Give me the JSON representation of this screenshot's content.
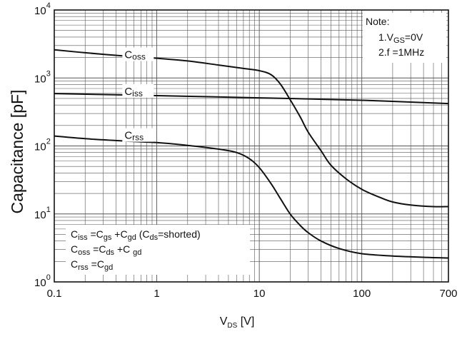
{
  "chart_data": {
    "type": "line",
    "x_scale": "log",
    "y_scale": "log",
    "xlim": [
      0.1,
      700
    ],
    "ylim": [
      1,
      10000
    ],
    "grid": true,
    "xlabel": {
      "main": "V",
      "sub": "DS",
      "unit": " [V]"
    },
    "ylabel": "Capacitance  [pF]",
    "x_ticks": [
      {
        "value": 0.1,
        "label": "0.1"
      },
      {
        "value": 1,
        "label": "1"
      },
      {
        "value": 10,
        "label": "10"
      },
      {
        "value": 100,
        "label": "100"
      },
      {
        "value": 700,
        "label": "700"
      }
    ],
    "y_ticks": [
      {
        "value": 1,
        "base": "10",
        "exp": "0"
      },
      {
        "value": 10,
        "base": "10",
        "exp": "1"
      },
      {
        "value": 100,
        "base": "10",
        "exp": "2"
      },
      {
        "value": 1000,
        "base": "10",
        "exp": "3"
      },
      {
        "value": 10000,
        "base": "10",
        "exp": "4"
      }
    ],
    "series": [
      {
        "name": "Coss",
        "label_main": "C",
        "label_sub": "oss",
        "label_at": [
          0.5,
          2000
        ],
        "points": [
          [
            0.1,
            2600
          ],
          [
            0.2,
            2350
          ],
          [
            0.5,
            2100
          ],
          [
            1,
            1950
          ],
          [
            2,
            1780
          ],
          [
            4,
            1550
          ],
          [
            7,
            1380
          ],
          [
            10,
            1280
          ],
          [
            13,
            1120
          ],
          [
            16,
            820
          ],
          [
            20,
            480
          ],
          [
            25,
            270
          ],
          [
            30,
            160
          ],
          [
            40,
            85
          ],
          [
            50,
            52
          ],
          [
            70,
            33
          ],
          [
            100,
            23
          ],
          [
            150,
            17.5
          ],
          [
            200,
            15
          ],
          [
            300,
            13.5
          ],
          [
            500,
            12.8
          ],
          [
            700,
            12.8
          ]
        ]
      },
      {
        "name": "Ciss",
        "label_main": "C",
        "label_sub": "iss",
        "label_at": [
          0.5,
          580
        ],
        "points": [
          [
            0.1,
            590
          ],
          [
            1,
            550
          ],
          [
            10,
            510
          ],
          [
            100,
            470
          ],
          [
            700,
            420
          ]
        ]
      },
      {
        "name": "Crss",
        "label_main": "C",
        "label_sub": "rss",
        "label_at": [
          0.5,
          130
        ],
        "points": [
          [
            0.1,
            140
          ],
          [
            0.2,
            128
          ],
          [
            0.5,
            118
          ],
          [
            1,
            112
          ],
          [
            2,
            102
          ],
          [
            4,
            90
          ],
          [
            6,
            80
          ],
          [
            8,
            65
          ],
          [
            10,
            48
          ],
          [
            13,
            28
          ],
          [
            16,
            17
          ],
          [
            20,
            10
          ],
          [
            25,
            6.8
          ],
          [
            30,
            5.3
          ],
          [
            40,
            4.0
          ],
          [
            60,
            3.1
          ],
          [
            100,
            2.6
          ],
          [
            200,
            2.4
          ],
          [
            400,
            2.3
          ],
          [
            700,
            2.25
          ]
        ]
      }
    ],
    "note": {
      "title": "Note:",
      "line1_prefix": "1.V",
      "line1_sub": "GS",
      "line1_suffix": "=0V",
      "line2": "2.f =1MHz"
    },
    "equations": [
      {
        "parts": [
          [
            "C",
            ""
          ],
          [
            "iss",
            "sub"
          ],
          [
            " =C",
            ""
          ],
          [
            "gs",
            "sub"
          ],
          [
            " +C",
            ""
          ],
          [
            "gd",
            "sub"
          ],
          [
            "  (C",
            ""
          ],
          [
            "ds",
            "sub"
          ],
          [
            "=shorted)",
            ""
          ]
        ]
      },
      {
        "parts": [
          [
            "C",
            ""
          ],
          [
            "oss",
            "sub"
          ],
          [
            " =C",
            ""
          ],
          [
            "ds",
            "sub"
          ],
          [
            " +C ",
            ""
          ],
          [
            "gd",
            "sub"
          ]
        ]
      },
      {
        "parts": [
          [
            "C",
            ""
          ],
          [
            "rss",
            "sub"
          ],
          [
            " =C",
            ""
          ],
          [
            "gd",
            "sub"
          ]
        ]
      }
    ]
  }
}
